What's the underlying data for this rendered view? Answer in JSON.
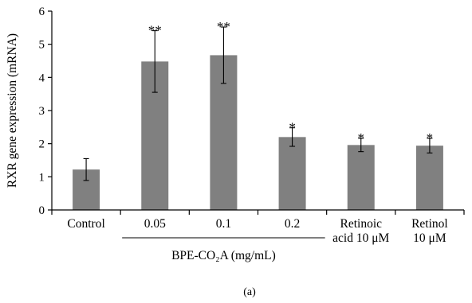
{
  "chart_data": {
    "type": "bar",
    "categories": [
      "Control",
      "0.05",
      "0.1",
      "0.2",
      "Retinoic acid 10 μM",
      "Retinol 10 μM"
    ],
    "category_lines": [
      [
        "Control"
      ],
      [
        "0.05"
      ],
      [
        "0.1"
      ],
      [
        "0.2"
      ],
      [
        "Retinoic",
        "acid 10 μM"
      ],
      [
        "Retinol",
        "10 μM"
      ]
    ],
    "values": [
      1.22,
      4.48,
      4.67,
      2.2,
      1.96,
      1.94
    ],
    "errors": [
      0.33,
      0.93,
      0.85,
      0.28,
      0.2,
      0.22
    ],
    "significance": [
      "",
      "**",
      "**",
      "*",
      "*",
      "*"
    ],
    "ylabel": "RXR gene expression (mRNA)",
    "xlabel": "",
    "ylim": [
      0,
      6
    ],
    "yticks": [
      0,
      1,
      2,
      3,
      4,
      5,
      6
    ],
    "group_label": "BPE-CO₂A (mg/mL)",
    "group_categories": [
      1,
      2,
      3
    ],
    "panel_label": "(a)",
    "bar_color": "#808080",
    "grid": false
  }
}
